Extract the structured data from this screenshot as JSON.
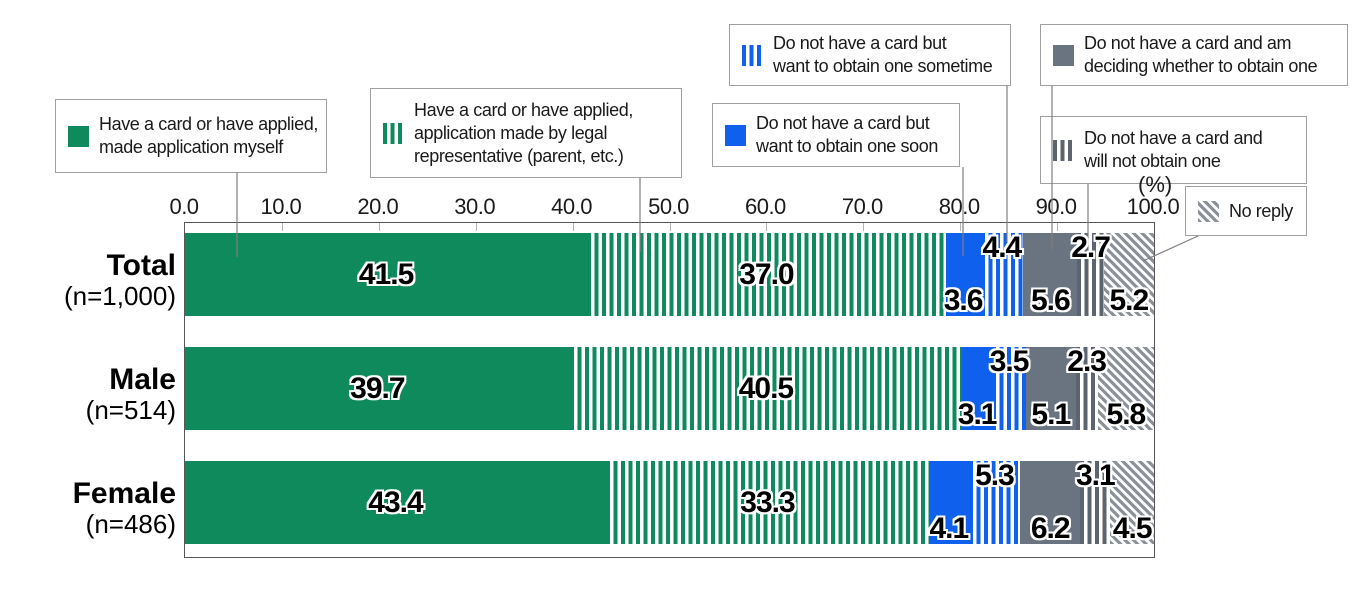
{
  "chart_data": {
    "type": "bar",
    "stacked": true,
    "orientation": "horizontal",
    "unit_label": "(%)",
    "xlim": [
      0,
      100
    ],
    "axis_ticks": [
      "0.0",
      "10.0",
      "20.0",
      "30.0",
      "40.0",
      "50.0",
      "60.0",
      "70.0",
      "80.0",
      "90.0",
      "100.0"
    ],
    "legend_position": "top",
    "series": [
      {
        "name": "Have a card or have applied, made application myself",
        "pattern": "solid",
        "color": "#0e8a5c"
      },
      {
        "name": "Have a card or have applied, application made by legal representative (parent, etc.)",
        "pattern": "vertical-stripes",
        "color": "#0e8a5c"
      },
      {
        "name": "Do not have a card but want to obtain one soon",
        "pattern": "solid",
        "color": "#1060ee"
      },
      {
        "name": "Do not have a card but want to obtain one sometime",
        "pattern": "vertical-stripes",
        "color": "#1060ee"
      },
      {
        "name": "Do not have a card and am deciding whether to obtain one",
        "pattern": "solid",
        "color": "#6a7480"
      },
      {
        "name": "Do not have a card and will not obtain one",
        "pattern": "vertical-stripes",
        "color": "#5c656f"
      },
      {
        "name": "No reply",
        "pattern": "diagonal-stripes",
        "color": "#8b919b"
      }
    ],
    "rows": [
      {
        "label": "Total",
        "n": "(n=1,000)",
        "values": [
          41.5,
          37.0,
          3.6,
          4.4,
          5.6,
          2.7,
          5.2
        ]
      },
      {
        "label": "Male",
        "n": "(n=514)",
        "values": [
          39.7,
          40.5,
          3.1,
          3.5,
          5.1,
          2.3,
          5.8
        ]
      },
      {
        "label": "Female",
        "n": "(n=486)",
        "values": [
          43.4,
          33.3,
          4.1,
          5.3,
          6.2,
          3.1,
          4.5
        ]
      }
    ]
  },
  "legend": {
    "items": [
      {
        "label": "Have a card or have applied,\nmade application myself"
      },
      {
        "label": "Have a card or have applied,\napplication made by legal\nrepresentative (parent, etc.)"
      },
      {
        "label": "Do not have a card but\nwant to obtain one soon"
      },
      {
        "label": "Do not have a card but\nwant to obtain one sometime"
      },
      {
        "label": "Do not have a card and am\ndeciding whether to obtain one"
      },
      {
        "label": "Do not have a card and\nwill not obtain one"
      },
      {
        "label": "No reply"
      }
    ]
  }
}
